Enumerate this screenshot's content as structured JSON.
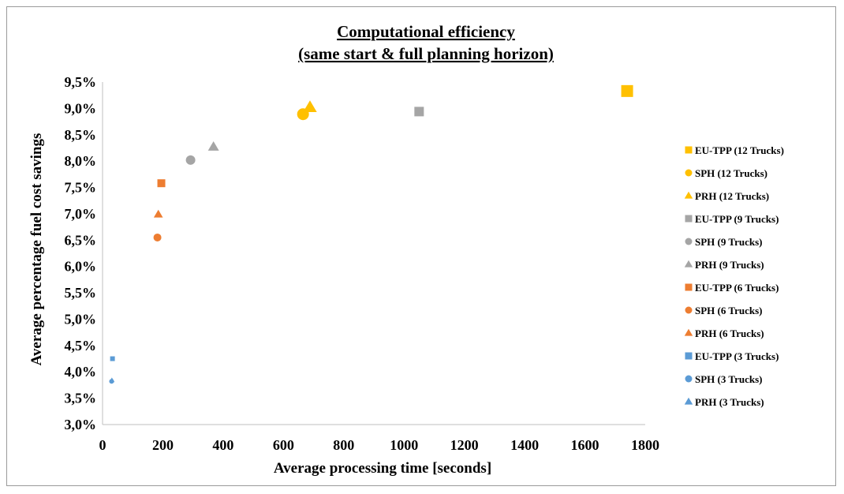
{
  "chart_data": {
    "type": "scatter",
    "title": "Computational efficiency",
    "subtitle": "(same start & full planning horizon)",
    "xlabel": "Average processing time [seconds]",
    "ylabel": "Average percentage fuel cost savings",
    "xlim": [
      0,
      1800
    ],
    "ylim": [
      3.0,
      9.5
    ],
    "x_ticks": [
      "0",
      "200",
      "400",
      "600",
      "800",
      "1000",
      "1200",
      "1400",
      "1600",
      "1800"
    ],
    "y_ticks": [
      "3,0%",
      "3,5%",
      "4,0%",
      "4,5%",
      "5,0%",
      "5,5%",
      "6,0%",
      "6,5%",
      "7,0%",
      "7,5%",
      "8,0%",
      "8,5%",
      "9,0%",
      "9,5%"
    ],
    "grid": false,
    "legend_position": "right",
    "colors": {
      "12 Trucks": "#FFC000",
      "9 Trucks": "#A5A5A5",
      "6 Trucks": "#ED7D31",
      "3 Trucks": "#5B9BD5"
    },
    "series": [
      {
        "name": "EU-TPP (12 Trucks)",
        "marker": "square",
        "size": "large",
        "color": "#FFC000",
        "points": [
          {
            "x": 1740,
            "y": 9.33
          }
        ]
      },
      {
        "name": "SPH (12 Trucks)",
        "marker": "circle",
        "size": "large",
        "color": "#FFC000",
        "points": [
          {
            "x": 665,
            "y": 8.89
          }
        ]
      },
      {
        "name": "PRH (12 Trucks)",
        "marker": "triangle",
        "size": "large",
        "color": "#FFC000",
        "points": [
          {
            "x": 688,
            "y": 9.02
          }
        ]
      },
      {
        "name": "EU-TPP (9 Trucks)",
        "marker": "square",
        "size": "medium",
        "color": "#A5A5A5",
        "points": [
          {
            "x": 1050,
            "y": 8.94
          }
        ]
      },
      {
        "name": "SPH (9 Trucks)",
        "marker": "circle",
        "size": "medium",
        "color": "#A5A5A5",
        "points": [
          {
            "x": 292,
            "y": 8.02
          }
        ]
      },
      {
        "name": "PRH (9 Trucks)",
        "marker": "triangle",
        "size": "medium",
        "color": "#A5A5A5",
        "points": [
          {
            "x": 368,
            "y": 8.27
          }
        ]
      },
      {
        "name": "EU-TPP (6 Trucks)",
        "marker": "square",
        "size": "small",
        "color": "#ED7D31",
        "points": [
          {
            "x": 195,
            "y": 7.58
          }
        ]
      },
      {
        "name": "SPH (6 Trucks)",
        "marker": "circle",
        "size": "small",
        "color": "#ED7D31",
        "points": [
          {
            "x": 182,
            "y": 6.55
          }
        ]
      },
      {
        "name": "PRH (6 Trucks)",
        "marker": "triangle",
        "size": "small",
        "color": "#ED7D31",
        "points": [
          {
            "x": 185,
            "y": 6.99
          }
        ]
      },
      {
        "name": "EU-TPP (3 Trucks)",
        "marker": "square",
        "size": "tiny",
        "color": "#5B9BD5",
        "points": [
          {
            "x": 33,
            "y": 4.25
          }
        ]
      },
      {
        "name": "SPH (3 Trucks)",
        "marker": "circle",
        "size": "tiny",
        "color": "#5B9BD5",
        "points": [
          {
            "x": 30,
            "y": 3.82
          }
        ]
      },
      {
        "name": "PRH (3 Trucks)",
        "marker": "triangle",
        "size": "tiny",
        "color": "#5B9BD5",
        "points": [
          {
            "x": 31,
            "y": 3.84
          }
        ]
      }
    ]
  }
}
